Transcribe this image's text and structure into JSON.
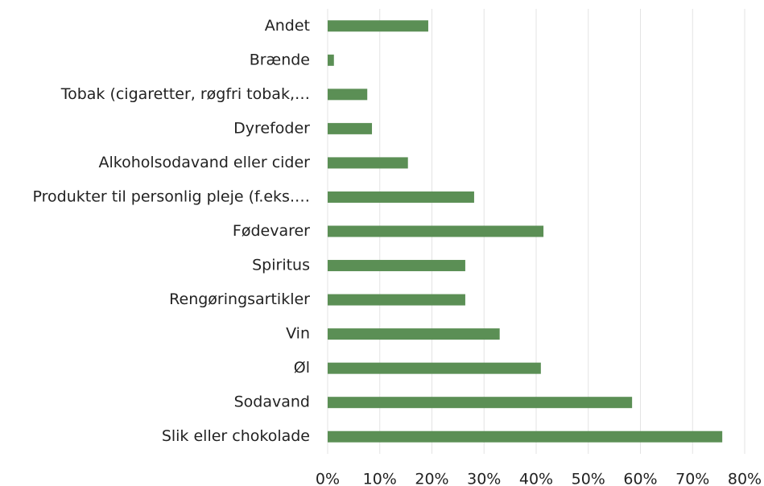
{
  "chart_data": {
    "type": "barh",
    "categories": [
      "Andet",
      "Brænde",
      "Tobak (cigaretter, røgfri tobak,…",
      "Dyrefoder",
      "Alkoholsodavand eller cider",
      "Produkter til personlig pleje (f.eks.…",
      "Fødevarer",
      "Spiritus",
      "Rengøringsartikler",
      "Vin",
      "Øl",
      "Sodavand",
      "Slik eller chokolade"
    ],
    "values": [
      19.3,
      1.2,
      7.6,
      8.5,
      15.4,
      28.1,
      41.4,
      26.4,
      26.4,
      33.0,
      40.9,
      58.4,
      75.7
    ],
    "color": "#5b8f55",
    "xlim": [
      0,
      80
    ],
    "xticks": [
      {
        "value": 0,
        "label": "0%"
      },
      {
        "value": 10,
        "label": "10%"
      },
      {
        "value": 20,
        "label": "20%"
      },
      {
        "value": 30,
        "label": "30%"
      },
      {
        "value": 40,
        "label": "40%"
      },
      {
        "value": 50,
        "label": "50%"
      },
      {
        "value": 60,
        "label": "60%"
      },
      {
        "value": 70,
        "label": "70%"
      },
      {
        "value": 80,
        "label": "80%"
      }
    ],
    "grid": true
  }
}
